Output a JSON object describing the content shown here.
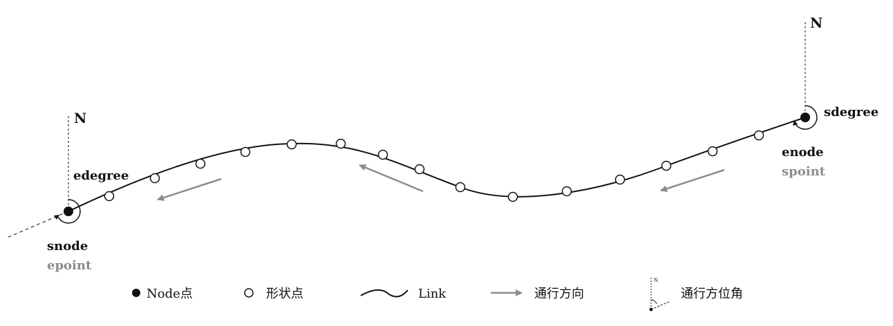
{
  "labels": {
    "north_left": "N",
    "north_right": "N",
    "edegree": "edegree",
    "snode": "snode",
    "epoint": "epoint",
    "sdegree": "sdegree",
    "enode": "enode",
    "spoint": "spoint"
  },
  "legend": {
    "node_point": "Node点",
    "shape_point": "形状点",
    "link": "Link",
    "direction": "通行方向",
    "azimuth": "通行方位角",
    "azimuth_n": "N"
  },
  "colors": {
    "line": "#111111",
    "arrow": "#8c8c8c",
    "secondary_label": "#8c8c8c"
  }
}
